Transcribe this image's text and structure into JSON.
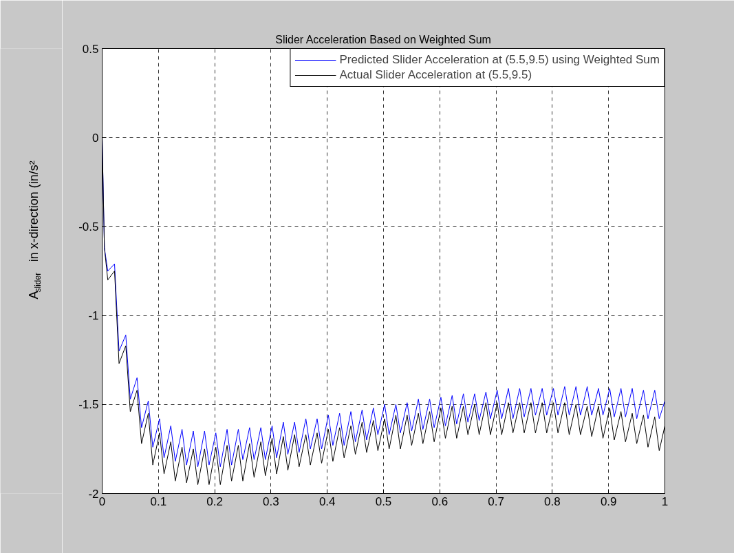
{
  "chart_data": {
    "type": "line",
    "title": "Slider Acceleration Based on Weighted Sum",
    "ylabel": "A$_{slider}$ in x-direction (in/s²",
    "x": [
      0,
      0.004,
      0.01,
      0.022,
      0.03,
      0.042,
      0.05,
      0.062,
      0.07,
      0.082,
      0.09,
      0.102,
      0.11,
      0.122,
      0.13,
      0.142,
      0.15,
      0.162,
      0.17,
      0.182,
      0.19,
      0.202,
      0.21,
      0.222,
      0.23,
      0.242,
      0.25,
      0.262,
      0.27,
      0.282,
      0.29,
      0.302,
      0.31,
      0.322,
      0.33,
      0.342,
      0.35,
      0.362,
      0.37,
      0.382,
      0.39,
      0.402,
      0.41,
      0.422,
      0.43,
      0.442,
      0.45,
      0.462,
      0.47,
      0.482,
      0.49,
      0.502,
      0.51,
      0.522,
      0.53,
      0.542,
      0.55,
      0.562,
      0.57,
      0.582,
      0.59,
      0.602,
      0.61,
      0.622,
      0.63,
      0.642,
      0.65,
      0.662,
      0.67,
      0.682,
      0.69,
      0.702,
      0.71,
      0.722,
      0.73,
      0.742,
      0.75,
      0.762,
      0.77,
      0.782,
      0.79,
      0.802,
      0.81,
      0.822,
      0.83,
      0.842,
      0.85,
      0.862,
      0.87,
      0.882,
      0.89,
      0.902,
      0.91,
      0.922,
      0.93,
      0.942,
      0.95,
      0.962,
      0.97,
      0.982,
      0.99,
      1
    ],
    "series": [
      {
        "name": "Predicted Slider Acceleration at (5.5,9.5) using Weighted Sum",
        "color": "#0000ff",
        "values": [
          0,
          -0.62,
          -0.75,
          -0.71,
          -1.2,
          -1.11,
          -1.47,
          -1.35,
          -1.63,
          -1.48,
          -1.74,
          -1.58,
          -1.8,
          -1.62,
          -1.82,
          -1.64,
          -1.84,
          -1.65,
          -1.85,
          -1.65,
          -1.84,
          -1.66,
          -1.85,
          -1.64,
          -1.84,
          -1.64,
          -1.81,
          -1.63,
          -1.81,
          -1.63,
          -1.81,
          -1.62,
          -1.8,
          -1.6,
          -1.78,
          -1.6,
          -1.77,
          -1.58,
          -1.75,
          -1.58,
          -1.75,
          -1.56,
          -1.73,
          -1.55,
          -1.73,
          -1.54,
          -1.71,
          -1.53,
          -1.7,
          -1.52,
          -1.67,
          -1.5,
          -1.67,
          -1.5,
          -1.66,
          -1.49,
          -1.65,
          -1.47,
          -1.64,
          -1.47,
          -1.63,
          -1.46,
          -1.62,
          -1.45,
          -1.61,
          -1.44,
          -1.6,
          -1.44,
          -1.59,
          -1.43,
          -1.58,
          -1.42,
          -1.58,
          -1.41,
          -1.58,
          -1.41,
          -1.57,
          -1.41,
          -1.56,
          -1.41,
          -1.56,
          -1.41,
          -1.56,
          -1.4,
          -1.56,
          -1.4,
          -1.56,
          -1.4,
          -1.56,
          -1.41,
          -1.56,
          -1.41,
          -1.57,
          -1.41,
          -1.57,
          -1.41,
          -1.58,
          -1.42,
          -1.58,
          -1.42,
          -1.58,
          -1.48
        ]
      },
      {
        "name": "Actual Slider Acceleration at (5.5,9.5)",
        "color": "#000000",
        "values": [
          0,
          -0.62,
          -0.8,
          -0.75,
          -1.27,
          -1.17,
          -1.54,
          -1.42,
          -1.72,
          -1.55,
          -1.84,
          -1.66,
          -1.89,
          -1.71,
          -1.93,
          -1.74,
          -1.94,
          -1.75,
          -1.95,
          -1.75,
          -1.95,
          -1.74,
          -1.95,
          -1.73,
          -1.93,
          -1.73,
          -1.93,
          -1.72,
          -1.91,
          -1.71,
          -1.9,
          -1.69,
          -1.89,
          -1.68,
          -1.87,
          -1.67,
          -1.85,
          -1.67,
          -1.84,
          -1.66,
          -1.83,
          -1.64,
          -1.82,
          -1.63,
          -1.8,
          -1.62,
          -1.78,
          -1.6,
          -1.77,
          -1.59,
          -1.76,
          -1.58,
          -1.75,
          -1.56,
          -1.75,
          -1.56,
          -1.73,
          -1.55,
          -1.72,
          -1.54,
          -1.71,
          -1.52,
          -1.69,
          -1.51,
          -1.69,
          -1.51,
          -1.67,
          -1.5,
          -1.67,
          -1.49,
          -1.67,
          -1.49,
          -1.67,
          -1.49,
          -1.66,
          -1.49,
          -1.66,
          -1.49,
          -1.66,
          -1.49,
          -1.66,
          -1.49,
          -1.66,
          -1.49,
          -1.67,
          -1.5,
          -1.67,
          -1.51,
          -1.68,
          -1.51,
          -1.69,
          -1.52,
          -1.7,
          -1.54,
          -1.71,
          -1.55,
          -1.72,
          -1.56,
          -1.74,
          -1.57,
          -1.76,
          -1.62
        ]
      }
    ],
    "xlim": [
      0,
      1
    ],
    "ylim": [
      -2,
      0.5
    ],
    "xticks": [
      0,
      0.1,
      0.2,
      0.3,
      0.4,
      0.5,
      0.6,
      0.7,
      0.8,
      0.9,
      1
    ],
    "yticks": [
      -2,
      -1.5,
      -1,
      -0.5,
      0,
      0.5
    ],
    "grid": true,
    "legend": "top right"
  }
}
